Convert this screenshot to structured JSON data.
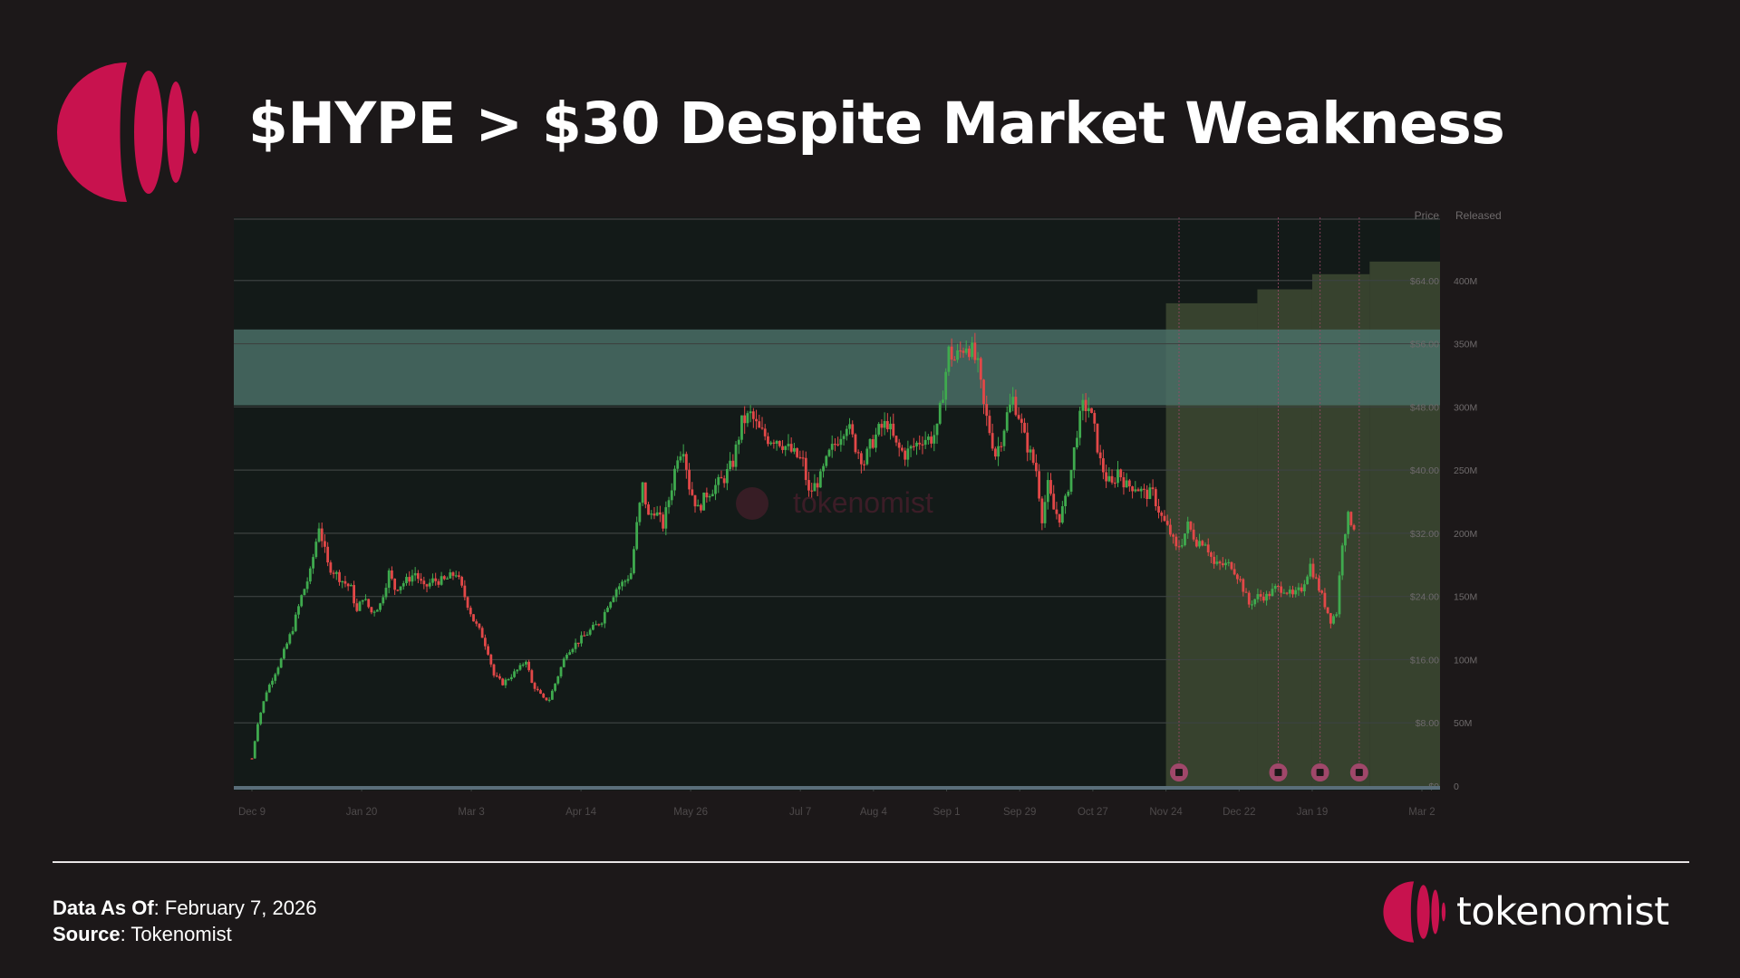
{
  "header": {
    "title": "$HYPE > $30 Despite Market Weakness"
  },
  "footer": {
    "data_as_of_label": "Data As Of",
    "data_as_of_value": ": February 7, 2026",
    "source_label": "Source",
    "source_value": ": Tokenomist",
    "brand_name": "tokenomist"
  },
  "colors": {
    "background": "#1c1819",
    "plot_background": "#131a18",
    "brand": "#c8124e",
    "up_candle": "#3faa4e",
    "down_candle": "#e24848",
    "resistance_zone": "#4a6e66",
    "released_area": "#3e4a32",
    "unlock_marker": "#a0476a"
  },
  "chart_data": {
    "type": "candlestick",
    "watermark": "tokenomist",
    "price_axis_label": "Price",
    "released_axis_label": "Released",
    "price_ticks": [
      "$64.00",
      "$56.00",
      "$48.00",
      "$40.00",
      "$32.00",
      "$24.00",
      "$16.00",
      "$8.00",
      "$0"
    ],
    "released_ticks": [
      "400M",
      "350M",
      "300M",
      "250M",
      "200M",
      "150M",
      "100M",
      "50M",
      "0"
    ],
    "x_ticks": [
      "Dec 9",
      "Jan 20",
      "Mar 3",
      "Apr 14",
      "May 26",
      "Jul 7",
      "Aug 4",
      "Sep 1",
      "Sep 29",
      "Oct 27",
      "Nov 24",
      "Dec 22",
      "Jan 19",
      "Mar 2"
    ],
    "price_range": [
      0,
      72
    ],
    "released_range": [
      0,
      450
    ],
    "grid": true,
    "resistance_zone": [
      48.2,
      57.8
    ],
    "price_path": [
      [
        0,
        3.5
      ],
      [
        2,
        8
      ],
      [
        5,
        12
      ],
      [
        10,
        16
      ],
      [
        14,
        20
      ],
      [
        17,
        24
      ],
      [
        20,
        27
      ],
      [
        23,
        33
      ],
      [
        26,
        28
      ],
      [
        31,
        26
      ],
      [
        34,
        25
      ],
      [
        36,
        22
      ],
      [
        38,
        24
      ],
      [
        41,
        22
      ],
      [
        44,
        23
      ],
      [
        47,
        27
      ],
      [
        49,
        25
      ],
      [
        53,
        26
      ],
      [
        56,
        27
      ],
      [
        59,
        25
      ],
      [
        62,
        26
      ],
      [
        66,
        26
      ],
      [
        70,
        27
      ],
      [
        73,
        24
      ],
      [
        76,
        21
      ],
      [
        79,
        19
      ],
      [
        81,
        17
      ],
      [
        83,
        14
      ],
      [
        86,
        13
      ],
      [
        89,
        14
      ],
      [
        92,
        15
      ],
      [
        94,
        16
      ],
      [
        96,
        13
      ],
      [
        98,
        12
      ],
      [
        100,
        11
      ],
      [
        102,
        11
      ],
      [
        105,
        14
      ],
      [
        108,
        17
      ],
      [
        111,
        18
      ],
      [
        114,
        19
      ],
      [
        117,
        20
      ],
      [
        120,
        21
      ],
      [
        122,
        23
      ],
      [
        125,
        25
      ],
      [
        128,
        26
      ],
      [
        130,
        27
      ],
      [
        132,
        33
      ],
      [
        134,
        38
      ],
      [
        136,
        34
      ],
      [
        138,
        35
      ],
      [
        141,
        33
      ],
      [
        144,
        38
      ],
      [
        146,
        42
      ],
      [
        148,
        43
      ],
      [
        150,
        38
      ],
      [
        153,
        35
      ],
      [
        156,
        37
      ],
      [
        159,
        38
      ],
      [
        162,
        39
      ],
      [
        165,
        41
      ],
      [
        168,
        46
      ],
      [
        171,
        47
      ],
      [
        174,
        45
      ],
      [
        177,
        44
      ],
      [
        180,
        44
      ],
      [
        183,
        43
      ],
      [
        186,
        42
      ],
      [
        189,
        41
      ],
      [
        191,
        37
      ],
      [
        193,
        38
      ],
      [
        195,
        39
      ],
      [
        198,
        42
      ],
      [
        201,
        44
      ],
      [
        204,
        46
      ],
      [
        207,
        43
      ],
      [
        210,
        41
      ],
      [
        212,
        43
      ],
      [
        215,
        45
      ],
      [
        218,
        46
      ],
      [
        221,
        43
      ],
      [
        224,
        42
      ],
      [
        227,
        43
      ],
      [
        230,
        44
      ],
      [
        233,
        44
      ],
      [
        235,
        45
      ],
      [
        237,
        50
      ],
      [
        239,
        55
      ],
      [
        241,
        54
      ],
      [
        243,
        55
      ],
      [
        245,
        56
      ],
      [
        247,
        55
      ],
      [
        249,
        53
      ],
      [
        251,
        48
      ],
      [
        253,
        45
      ],
      [
        255,
        42
      ],
      [
        257,
        44
      ],
      [
        259,
        47
      ],
      [
        261,
        49
      ],
      [
        263,
        47
      ],
      [
        265,
        44
      ],
      [
        267,
        42
      ],
      [
        269,
        40
      ],
      [
        271,
        34
      ],
      [
        273,
        38
      ],
      [
        275,
        35
      ],
      [
        277,
        34
      ],
      [
        279,
        36
      ],
      [
        281,
        40
      ],
      [
        283,
        45
      ],
      [
        285,
        48
      ],
      [
        287,
        48
      ],
      [
        289,
        45
      ],
      [
        291,
        41
      ],
      [
        293,
        39
      ],
      [
        295,
        38
      ],
      [
        297,
        40
      ],
      [
        300,
        38
      ],
      [
        303,
        38
      ],
      [
        306,
        37
      ],
      [
        309,
        37
      ],
      [
        312,
        34
      ],
      [
        315,
        32
      ],
      [
        317,
        30
      ],
      [
        319,
        31
      ],
      [
        321,
        33
      ],
      [
        324,
        31
      ],
      [
        327,
        31
      ],
      [
        330,
        28
      ],
      [
        333,
        28
      ],
      [
        336,
        28
      ],
      [
        339,
        26
      ],
      [
        342,
        23
      ],
      [
        345,
        24
      ],
      [
        348,
        24
      ],
      [
        351,
        25
      ],
      [
        354,
        25
      ],
      [
        357,
        24
      ],
      [
        360,
        25
      ],
      [
        363,
        28
      ],
      [
        366,
        25
      ],
      [
        368,
        23
      ],
      [
        370,
        21
      ],
      [
        372,
        22
      ],
      [
        374,
        31
      ],
      [
        376,
        34
      ],
      [
        378,
        33
      ]
    ],
    "released_steps": [
      {
        "from": "Nov 24",
        "value": 382
      },
      {
        "from": "Dec 29",
        "value": 393
      },
      {
        "from": "Jan 19",
        "value": 405
      },
      {
        "from": "Feb 10",
        "value": 415
      }
    ],
    "unlock_markers": [
      "Nov 29",
      "Jan 6",
      "Jan 22",
      "Feb 6"
    ]
  }
}
